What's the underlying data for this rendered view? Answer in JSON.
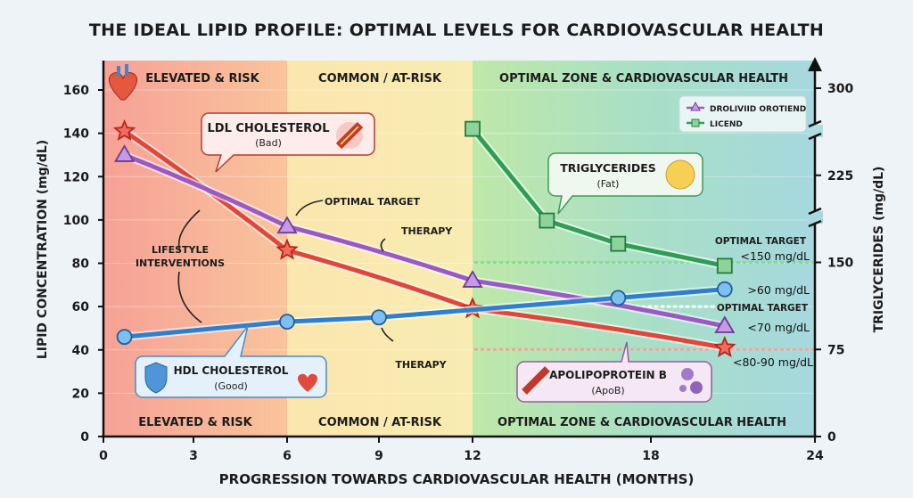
{
  "chart_data": {
    "type": "line",
    "title": "THE IDEAL LIPID PROFILE: OPTIMAL LEVELS FOR CARDIOVASCULAR HEALTH",
    "xlabel": "PROGRESSION TOWARDS CARDIOVASCULAR HEALTH (MONTHS)",
    "ylabel": "LIPID CONCENTRATION (mg/dL)",
    "y2label": "TRIGLYCERIDES (mg/dL)",
    "xlim": [
      0,
      24
    ],
    "ylim": [
      0,
      160
    ],
    "y2lim": [
      0,
      300
    ],
    "x_ticks": [
      "0",
      "3",
      "6",
      "9",
      "12",
      "18",
      "24"
    ],
    "y_ticks": [
      "0",
      "20",
      "40",
      "60",
      "80",
      "100",
      "120",
      "140",
      "160"
    ],
    "y2_ticks": [
      "0",
      "75",
      "150",
      "225",
      "300"
    ],
    "grid": true,
    "legend_position": "top-right",
    "legend": [
      {
        "label": "DROLIVIID OROTIEND",
        "marker": "triangle",
        "color": "#9b59c6"
      },
      {
        "label": "LICEND",
        "marker": "square",
        "color": "#2e9e55"
      }
    ],
    "zones": [
      {
        "label": "ELEVATED & RISK",
        "from": 0,
        "to": 6,
        "color": "#f7a99a"
      },
      {
        "label": "COMMON / AT-RISK",
        "from": 6,
        "to": 12,
        "color": "#fbe7b0"
      },
      {
        "label": "OPTIMAL ZONE & CARDIOVASCULAR HEALTH",
        "from": 12,
        "to": 24,
        "color": "#a9dcc8"
      }
    ],
    "series": [
      {
        "key": "ldl",
        "axis": "left",
        "marker": "star",
        "color": "#e0463a",
        "x": [
          0.7,
          6,
          12,
          20.7
        ],
        "y": [
          141,
          86,
          59,
          41
        ]
      },
      {
        "key": "apob",
        "axis": "left",
        "marker": "triangle",
        "color": "#9b59c6",
        "x": [
          0.7,
          6,
          12,
          20.7
        ],
        "y": [
          130,
          97,
          72,
          51
        ]
      },
      {
        "key": "hdl",
        "axis": "left",
        "marker": "circle",
        "color": "#2f7fcf",
        "x": [
          0.7,
          6,
          9,
          16.9,
          20.7
        ],
        "y": [
          46,
          53,
          55,
          64,
          68
        ]
      },
      {
        "key": "tg",
        "axis": "right",
        "marker": "square",
        "color": "#2e9e55",
        "x": [
          12,
          14.5,
          16.9,
          20.7
        ],
        "y": [
          265,
          186,
          166,
          147
        ]
      }
    ],
    "reference_lines": [
      {
        "axis": "right",
        "value": 150,
        "color": "#7fe08a"
      },
      {
        "axis": "left",
        "value": 60,
        "color": "#ffffff"
      },
      {
        "axis": "right",
        "value": 75,
        "color": "#f4a59a"
      }
    ],
    "annotations": {
      "ldl_title": "LDL CHOLESTEROL",
      "ldl_sub": "(Bad)",
      "hdl_title": "HDL CHOLESTEROL",
      "hdl_sub": "(Good)",
      "tg_title": "TRIGLYCERIDES",
      "tg_sub": "(Fat)",
      "apob_title": "APOLIPOPROTEIN B",
      "apob_sub": "(ApoB)",
      "optimal_target_1": "OPTIMAL TARGET",
      "therapy_1": "THERAPY",
      "lifestyle_1": "LIFESTYLE",
      "lifestyle_2": "INTERVENTIONS",
      "therapy_2": "THERAPY",
      "tg_target_label": "OPTIMAL TARGET",
      "tg_target_value": "<150 mg/dL",
      "hdl_target_value": ">60 mg/dL",
      "ldl_target_label": "OPTIMAL TARGET",
      "ldl_target_value": "<70 mg/dL",
      "apob_target_value": "<80-90 mg/dL"
    }
  }
}
